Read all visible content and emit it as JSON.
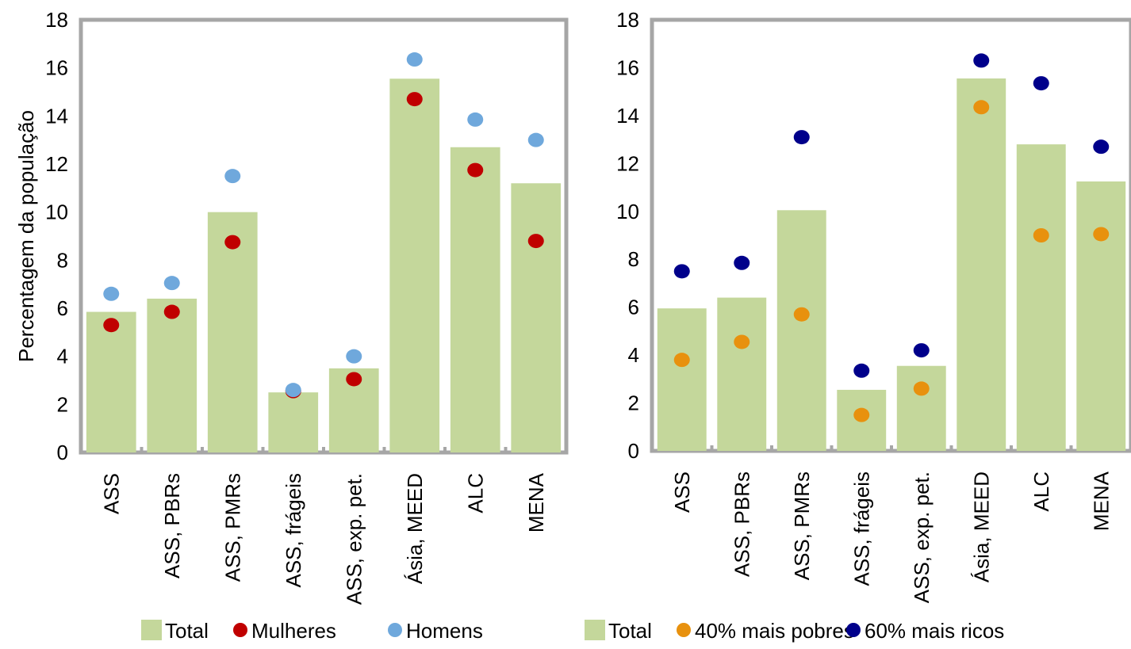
{
  "chart_data": [
    {
      "type": "bar",
      "ylabel": "Percentagem da população",
      "ylim": [
        0,
        18
      ],
      "yticks": [
        0,
        2,
        4,
        6,
        8,
        10,
        12,
        14,
        16,
        18
      ],
      "categories": [
        "ASS",
        "ASS, PBRs",
        "ASS, PMRs",
        "ASS, frágeis",
        "ASS, exp. pet.",
        "Ásia, MEED",
        "ALC",
        "MENA"
      ],
      "series": [
        {
          "name": "Total",
          "kind": "bar",
          "color": "#c4d79b",
          "values": [
            5.85,
            6.4,
            10.0,
            2.5,
            3.5,
            15.55,
            12.7,
            11.2
          ]
        },
        {
          "name": "Mulheres",
          "kind": "dot",
          "color": "#c00000",
          "values": [
            5.3,
            5.85,
            8.75,
            2.55,
            3.05,
            14.7,
            11.75,
            8.8
          ]
        },
        {
          "name": "Homens",
          "kind": "dot",
          "color": "#6fa8dc",
          "values": [
            6.6,
            7.05,
            11.5,
            2.6,
            4.0,
            16.35,
            13.85,
            13.0
          ]
        }
      ],
      "legend": [
        "Total",
        "Mulheres",
        "Homens"
      ],
      "legend_position": "bottom",
      "grid": false
    },
    {
      "type": "bar",
      "ylabel": "",
      "ylim": [
        0,
        18
      ],
      "yticks": [
        0,
        2,
        4,
        6,
        8,
        10,
        12,
        14,
        16,
        18
      ],
      "categories": [
        "ASS",
        "ASS, PBRs",
        "ASS, PMRs",
        "ASS, frágeis",
        "ASS, exp. pet.",
        "Ásia, MEED",
        "ALC",
        "MENA"
      ],
      "series": [
        {
          "name": "Total",
          "kind": "bar",
          "color": "#c4d79b",
          "values": [
            5.95,
            6.4,
            10.05,
            2.55,
            3.55,
            15.55,
            12.8,
            11.25
          ]
        },
        {
          "name": "40% mais pobres",
          "kind": "dot",
          "color": "#e8910e",
          "values": [
            3.8,
            4.55,
            5.7,
            1.5,
            2.6,
            14.35,
            9.0,
            9.05
          ]
        },
        {
          "name": "60% mais ricos",
          "kind": "dot",
          "color": "#00008b",
          "values": [
            7.5,
            7.85,
            13.1,
            3.35,
            4.2,
            16.3,
            15.35,
            12.7
          ]
        }
      ],
      "legend": [
        "Total",
        "40% mais pobres",
        "60% mais ricos"
      ],
      "legend_position": "bottom",
      "grid": false
    }
  ]
}
